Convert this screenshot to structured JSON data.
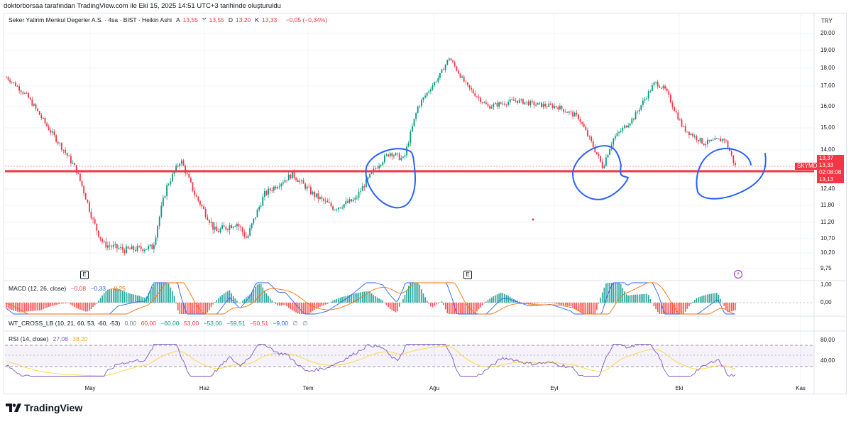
{
  "attribution": "doktorborsaa tarafından TradingView.com ile Eki 15, 2025 14:51 UTC+3 tarihinde oluşturuldu",
  "header": {
    "symbol_desc": "Seker Yatirim Menkul Degerler A.S. · 4sa · BIST · Heikin Ashi",
    "ohlc": [
      {
        "k": "A",
        "v": "13,55"
      },
      {
        "k": "Y",
        "v": "13,55"
      },
      {
        "k": "D",
        "v": "13,20"
      },
      {
        "k": "K",
        "v": "13,33"
      }
    ],
    "change": "−0,05 (−0,34%)"
  },
  "price_axis": {
    "currency": "TRY",
    "ticks": [
      "20,00",
      "19,00",
      "18,00",
      "17,00",
      "16,00",
      "15,00",
      "14,00",
      "12,40",
      "11,80",
      "11,20",
      "10,70",
      "10,20",
      "9,75"
    ]
  },
  "price_badges": {
    "high": "13,37",
    "last": "13,33",
    "countdown": "02:08:08",
    "low": "13,13",
    "symbol_tag": "SKYMD"
  },
  "time_axis": [
    "May",
    "Haz",
    "Tem",
    "Ağu",
    "Eyl",
    "Eki",
    "Kas"
  ],
  "event_marks": [
    "E",
    "E"
  ],
  "macd": {
    "label": "MACD (12, 26, close)",
    "values": [
      "−0,08",
      "−0,33",
      "−0,25"
    ],
    "axis": [
      "1,00",
      "0,00"
    ]
  },
  "wt_cross": {
    "label": "WT_CROSS_LB (10, 21, 60, 53, -60, -53)",
    "values": [
      "0,00",
      "60,00",
      "−60,00",
      "53,00",
      "−53,00",
      "−59,51",
      "−50,51",
      "−9,00",
      "∅",
      "∅"
    ]
  },
  "rsi": {
    "label": "RSI (14, close)",
    "values": [
      "27,08",
      "38,20"
    ],
    "axis": [
      "80,00",
      "40,00"
    ]
  },
  "brand": "TradingView",
  "colors": {
    "up": "#089981",
    "down": "#f23645",
    "support": "#f23645",
    "annotation": "#2962ff",
    "macd": "#2962ff",
    "signal": "#ff6d00",
    "rsi": "#7e57c2",
    "rsi_ma": "#fdd835"
  },
  "chart_data": {
    "type": "candlestick",
    "title": "",
    "x_labels": [
      "May",
      "Haz",
      "Tem",
      "Ağu",
      "Eyl",
      "Eki",
      "Kas"
    ],
    "support_level": 13.15,
    "last_close": 13.33,
    "anchors": [
      [
        0,
        17.5
      ],
      [
        0.03,
        16.5
      ],
      [
        0.06,
        15.0
      ],
      [
        0.1,
        13.2
      ],
      [
        0.125,
        11.2
      ],
      [
        0.14,
        10.5
      ],
      [
        0.17,
        10.3
      ],
      [
        0.21,
        10.4
      ],
      [
        0.23,
        12.5
      ],
      [
        0.25,
        13.6
      ],
      [
        0.27,
        12.2
      ],
      [
        0.3,
        10.9
      ],
      [
        0.33,
        11.2
      ],
      [
        0.345,
        10.7
      ],
      [
        0.37,
        12.2
      ],
      [
        0.41,
        13.0
      ],
      [
        0.44,
        12.2
      ],
      [
        0.47,
        11.7
      ],
      [
        0.5,
        12.0
      ],
      [
        0.53,
        13.3
      ],
      [
        0.55,
        13.9
      ],
      [
        0.57,
        13.6
      ],
      [
        0.59,
        16.0
      ],
      [
        0.62,
        17.5
      ],
      [
        0.635,
        18.6
      ],
      [
        0.66,
        17.0
      ],
      [
        0.69,
        16.0
      ],
      [
        0.73,
        16.3
      ],
      [
        0.76,
        16.1
      ],
      [
        0.79,
        16.0
      ],
      [
        0.82,
        15.5
      ],
      [
        0.855,
        13.3
      ],
      [
        0.87,
        14.5
      ],
      [
        0.9,
        15.5
      ],
      [
        0.93,
        17.2
      ],
      [
        0.945,
        16.8
      ],
      [
        0.97,
        15.0
      ],
      [
        1.0,
        14.3
      ],
      [
        1.03,
        14.5
      ],
      [
        1.045,
        13.33
      ]
    ]
  }
}
